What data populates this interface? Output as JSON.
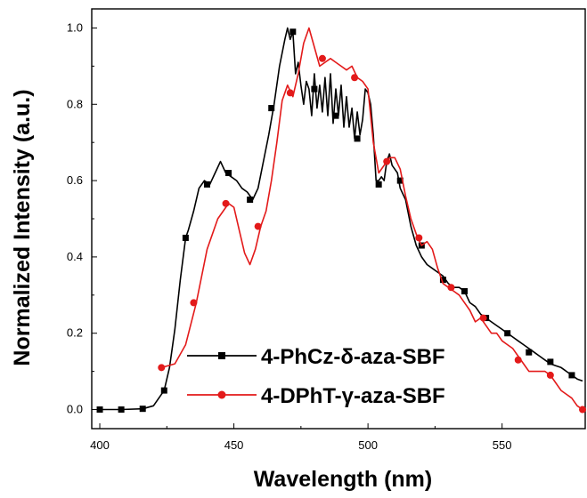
{
  "chart_data": {
    "type": "line",
    "xlabel": "Wavelength (nm)",
    "ylabel": "Normalized Intensity (a.u.)",
    "xlim": [
      397,
      581
    ],
    "ylim": [
      -0.05,
      1.05
    ],
    "x_ticks": [
      400,
      450,
      500,
      550
    ],
    "y_ticks": [
      0.0,
      0.2,
      0.4,
      0.6,
      0.8,
      1.0
    ],
    "x_tick_labels": [
      "400",
      "450",
      "500",
      "550"
    ],
    "y_tick_labels": [
      "0.0",
      "0.2",
      "0.4",
      "0.6",
      "0.8",
      "1.0"
    ],
    "grid": false,
    "legend_position": "bottom-right",
    "series": [
      {
        "name": "4-PhCz-δ-aza-SBF",
        "color": "#000000",
        "marker": "square",
        "x": [
          400,
          408,
          416,
          420,
          422,
          424,
          426,
          428,
          430,
          432,
          433,
          435,
          437,
          439,
          441,
          443,
          445,
          447,
          449,
          451,
          453,
          455,
          457,
          459,
          461,
          463,
          465,
          467,
          469,
          470,
          471,
          472,
          473,
          474,
          475,
          476,
          477,
          478,
          479,
          480,
          481,
          482,
          483,
          484,
          485,
          486,
          487,
          488,
          489,
          490,
          491,
          492,
          493,
          494,
          495,
          496,
          497,
          498,
          499,
          500,
          501,
          502,
          503,
          504,
          505,
          506,
          507,
          508,
          509,
          510,
          511,
          512,
          514,
          516,
          518,
          520,
          522,
          524,
          526,
          528,
          530,
          532,
          534,
          536,
          538,
          540,
          542,
          544,
          546,
          548,
          550,
          552,
          554,
          556,
          558,
          560,
          562,
          564,
          566,
          568,
          570,
          572,
          574,
          576,
          578,
          580
        ],
        "y": [
          0.0,
          0.0,
          0.002,
          0.01,
          0.03,
          0.05,
          0.11,
          0.21,
          0.34,
          0.45,
          0.47,
          0.52,
          0.58,
          0.6,
          0.59,
          0.62,
          0.65,
          0.62,
          0.61,
          0.6,
          0.58,
          0.57,
          0.55,
          0.58,
          0.65,
          0.72,
          0.8,
          0.9,
          0.97,
          1.0,
          0.97,
          0.99,
          0.88,
          0.91,
          0.85,
          0.8,
          0.86,
          0.84,
          0.77,
          0.88,
          0.79,
          0.85,
          0.78,
          0.87,
          0.77,
          0.88,
          0.75,
          0.84,
          0.77,
          0.85,
          0.74,
          0.82,
          0.74,
          0.79,
          0.71,
          0.78,
          0.72,
          0.76,
          0.84,
          0.83,
          0.8,
          0.72,
          0.6,
          0.6,
          0.61,
          0.6,
          0.65,
          0.67,
          0.64,
          0.63,
          0.62,
          0.58,
          0.55,
          0.48,
          0.43,
          0.4,
          0.38,
          0.37,
          0.36,
          0.35,
          0.33,
          0.32,
          0.32,
          0.31,
          0.28,
          0.27,
          0.25,
          0.24,
          0.23,
          0.22,
          0.21,
          0.2,
          0.19,
          0.18,
          0.17,
          0.16,
          0.15,
          0.14,
          0.13,
          0.12,
          0.115,
          0.11,
          0.1,
          0.09,
          0.08,
          0.075
        ],
        "marker_x": [
          400,
          408,
          416,
          424,
          432,
          440,
          448,
          456,
          464,
          472,
          480,
          488,
          496,
          504,
          512,
          520,
          528,
          536,
          544,
          552,
          560,
          568,
          576
        ],
        "marker_y": [
          0.0,
          0.0,
          0.002,
          0.05,
          0.45,
          0.59,
          0.62,
          0.55,
          0.79,
          0.99,
          0.84,
          0.77,
          0.71,
          0.59,
          0.6,
          0.43,
          0.34,
          0.31,
          0.24,
          0.2,
          0.15,
          0.125,
          0.09
        ]
      },
      {
        "name": "4-DPhT-γ-aza-SBF",
        "color": "#e31a1a",
        "marker": "circle",
        "x": [
          423,
          428,
          432,
          436,
          440,
          444,
          448,
          450,
          452,
          454,
          456,
          458,
          460,
          462,
          464,
          466,
          468,
          470,
          472,
          474,
          476,
          478,
          480,
          482,
          484,
          486,
          488,
          490,
          492,
          494,
          496,
          498,
          500,
          502,
          504,
          506,
          508,
          510,
          512,
          514,
          516,
          518,
          520,
          522,
          524,
          526,
          528,
          530,
          532,
          534,
          536,
          538,
          540,
          542,
          544,
          546,
          548,
          550,
          552,
          554,
          556,
          558,
          560,
          562,
          564,
          566,
          568,
          570,
          572,
          574,
          576,
          578,
          580
        ],
        "y": [
          0.11,
          0.12,
          0.17,
          0.28,
          0.42,
          0.5,
          0.54,
          0.53,
          0.47,
          0.41,
          0.38,
          0.42,
          0.48,
          0.52,
          0.6,
          0.7,
          0.81,
          0.85,
          0.82,
          0.88,
          0.96,
          1.0,
          0.95,
          0.9,
          0.91,
          0.92,
          0.91,
          0.9,
          0.89,
          0.9,
          0.87,
          0.86,
          0.84,
          0.7,
          0.62,
          0.64,
          0.66,
          0.66,
          0.63,
          0.56,
          0.5,
          0.46,
          0.43,
          0.44,
          0.42,
          0.37,
          0.33,
          0.32,
          0.31,
          0.3,
          0.28,
          0.26,
          0.23,
          0.24,
          0.22,
          0.2,
          0.2,
          0.18,
          0.17,
          0.16,
          0.14,
          0.12,
          0.1,
          0.1,
          0.1,
          0.1,
          0.09,
          0.07,
          0.05,
          0.04,
          0.03,
          0.01,
          0.0
        ],
        "marker_x": [
          423,
          435,
          447,
          459,
          471,
          483,
          495,
          507,
          519,
          531,
          543,
          556,
          568,
          580
        ],
        "marker_y": [
          0.11,
          0.28,
          0.54,
          0.48,
          0.83,
          0.92,
          0.87,
          0.65,
          0.45,
          0.32,
          0.24,
          0.13,
          0.09,
          0.0
        ]
      }
    ]
  }
}
